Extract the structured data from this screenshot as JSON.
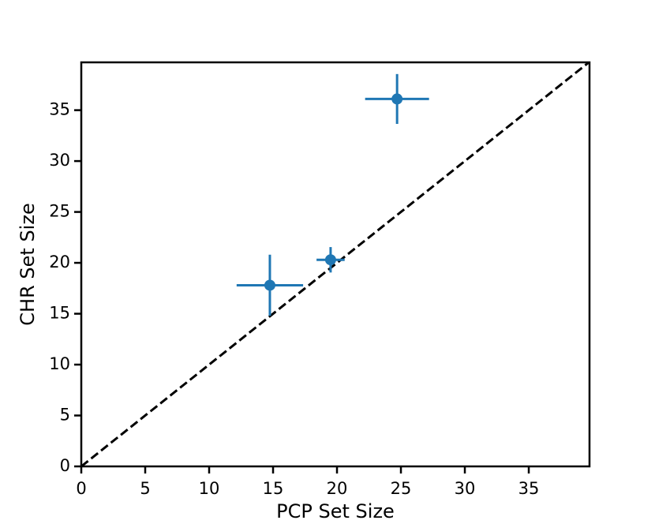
{
  "chart_data": {
    "type": "scatter",
    "xlabel": "PCP Set Size",
    "ylabel": "CHR Set Size",
    "xlim": [
      0,
      39.75
    ],
    "ylim": [
      0,
      39.7
    ],
    "xticks": [
      0,
      5,
      10,
      15,
      20,
      25,
      30,
      35
    ],
    "yticks": [
      0,
      5,
      10,
      15,
      20,
      25,
      30,
      35
    ],
    "diagonal": true,
    "series": [
      {
        "color": "#1f77b4",
        "x": [
          14.75,
          19.5,
          24.7
        ],
        "values": [
          17.8,
          20.3,
          36.1
        ],
        "xerr": [
          2.6,
          1.1,
          2.5
        ],
        "yerr": [
          3.0,
          1.25,
          2.45
        ]
      }
    ]
  }
}
